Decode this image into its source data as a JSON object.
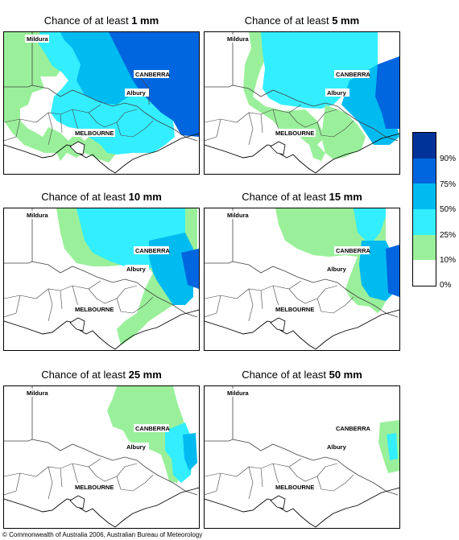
{
  "title_prefix": "Chance of at least",
  "panels": [
    {
      "amount": "1 mm"
    },
    {
      "amount": "5 mm"
    },
    {
      "amount": "10 mm"
    },
    {
      "amount": "15 mm"
    },
    {
      "amount": "25 mm"
    },
    {
      "amount": "50 mm"
    }
  ],
  "places": {
    "mildura": "Mildura",
    "canberra": "CANBERRA",
    "albury": "Albury",
    "melbourne": "MELBOURNE"
  },
  "legend": {
    "labels": [
      "90%",
      "75%",
      "50%",
      "25%",
      "10%",
      "0%"
    ],
    "colors": [
      "#003399",
      "#0066e0",
      "#00bbf0",
      "#33eeff",
      "#9af09a",
      "#ffffff"
    ]
  },
  "copyright": "© Commonwealth of Australia 2006, Australian Bureau of Meteorology"
}
